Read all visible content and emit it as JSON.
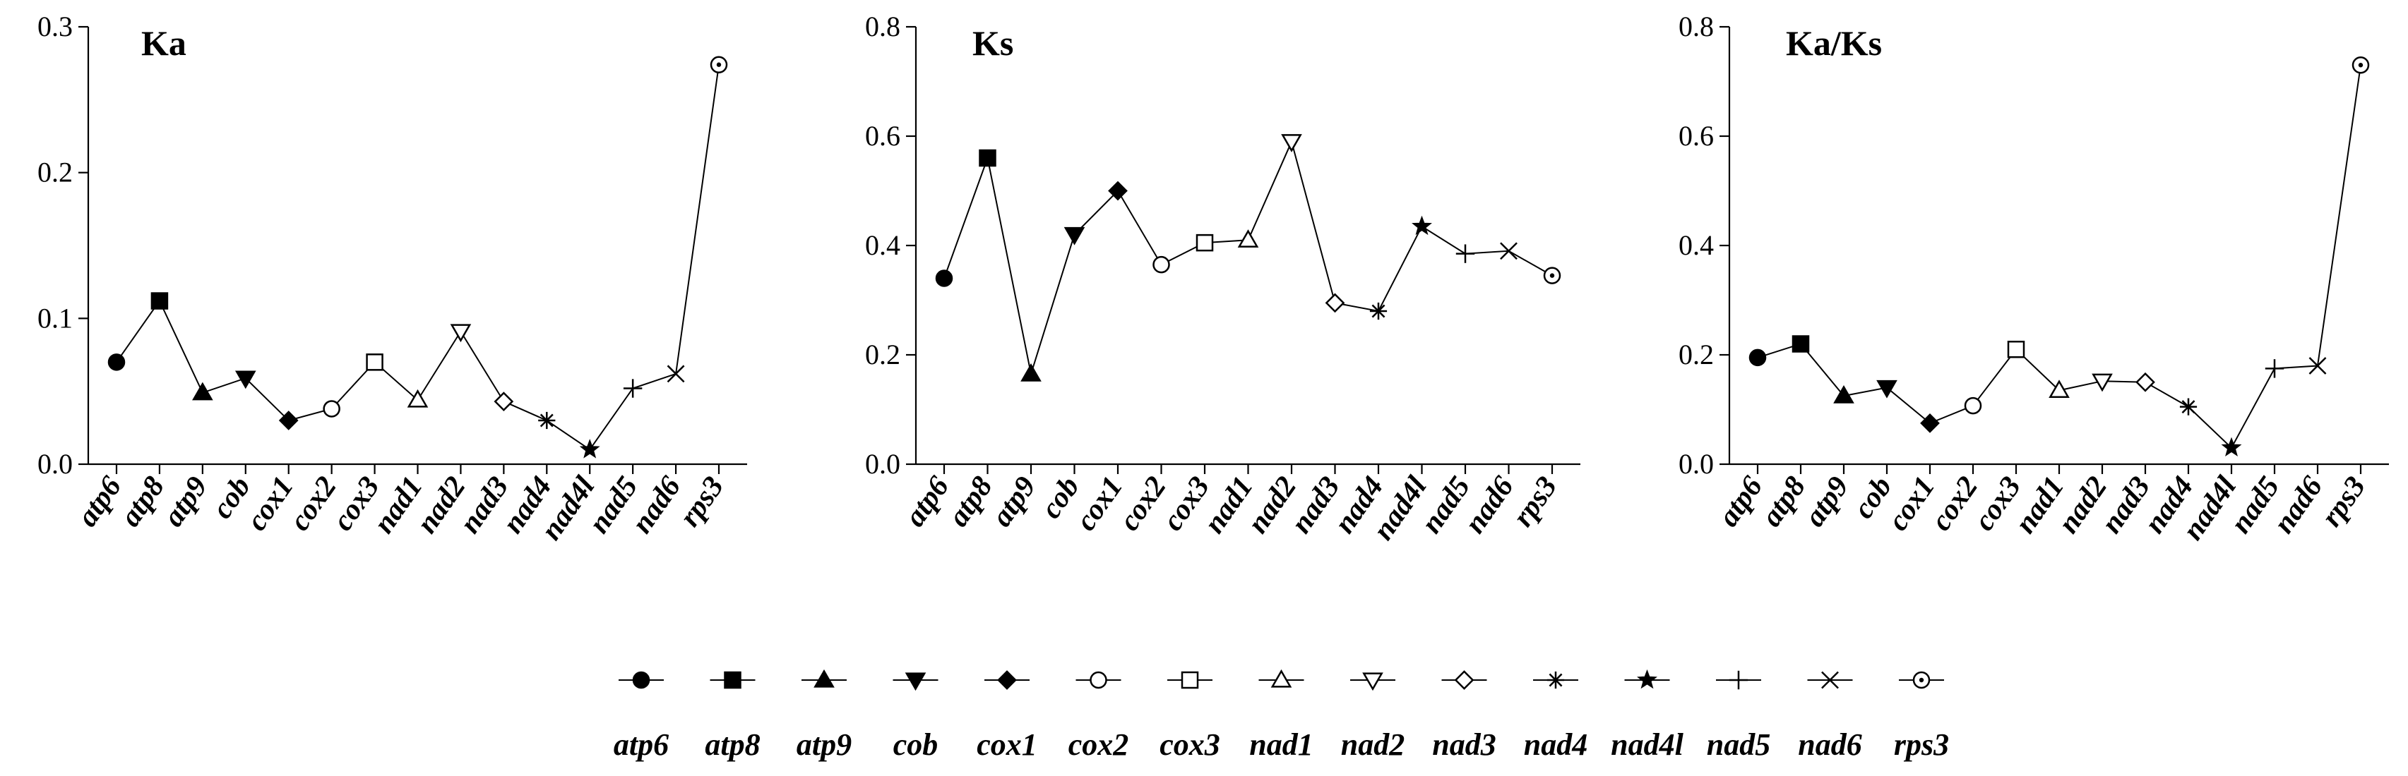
{
  "figure_title": "",
  "colors": {
    "ink": "#000000",
    "background": "#ffffff"
  },
  "chart_data": [
    {
      "type": "line",
      "title": "Ka",
      "xlabel": "",
      "ylabel": "",
      "ylim": [
        0,
        0.3
      ],
      "yticks": [
        "0.0",
        "0.1",
        "0.2",
        "0.3"
      ],
      "grid": false,
      "categories": [
        "atp6",
        "atp8",
        "atp9",
        "cob",
        "cox1",
        "cox2",
        "cox3",
        "nad1",
        "nad2",
        "nad3",
        "nad4",
        "nad4l",
        "nad5",
        "nad6",
        "rps3"
      ],
      "values": [
        0.07,
        0.112,
        0.049,
        0.059,
        0.03,
        0.038,
        0.07,
        0.044,
        0.091,
        0.043,
        0.03,
        0.01,
        0.052,
        0.062,
        0.274
      ]
    },
    {
      "type": "line",
      "title": "Ks",
      "xlabel": "",
      "ylabel": "",
      "ylim": [
        0,
        0.8
      ],
      "yticks": [
        "0.0",
        "0.2",
        "0.4",
        "0.6",
        "0.8"
      ],
      "grid": false,
      "categories": [
        "atp6",
        "atp8",
        "atp9",
        "cob",
        "cox1",
        "cox2",
        "cox3",
        "nad1",
        "nad2",
        "nad3",
        "nad4",
        "nad4l",
        "nad5",
        "nad6",
        "rps3"
      ],
      "values": [
        0.34,
        0.56,
        0.165,
        0.42,
        0.5,
        0.365,
        0.405,
        0.41,
        0.59,
        0.295,
        0.28,
        0.435,
        0.385,
        0.39,
        0.345
      ]
    },
    {
      "type": "line",
      "title": "Ka/Ks",
      "xlabel": "",
      "ylabel": "",
      "ylim": [
        0,
        0.8
      ],
      "yticks": [
        "0.0",
        "0.2",
        "0.4",
        "0.6",
        "0.8"
      ],
      "grid": false,
      "categories": [
        "atp6",
        "atp8",
        "atp9",
        "cob",
        "cox1",
        "cox2",
        "cox3",
        "nad1",
        "nad2",
        "nad3",
        "nad4",
        "nad4l",
        "nad5",
        "nad6",
        "rps3"
      ],
      "values": [
        0.195,
        0.22,
        0.125,
        0.14,
        0.075,
        0.107,
        0.21,
        0.135,
        0.152,
        0.15,
        0.105,
        0.03,
        0.175,
        0.18,
        0.73
      ]
    }
  ],
  "legend": {
    "position": "bottom",
    "items": [
      {
        "label": "atp6",
        "marker": "filled-circle-icon"
      },
      {
        "label": "atp8",
        "marker": "filled-square-icon"
      },
      {
        "label": "atp9",
        "marker": "filled-triangle-up-icon"
      },
      {
        "label": "cob",
        "marker": "filled-triangle-down-icon"
      },
      {
        "label": "cox1",
        "marker": "filled-diamond-icon"
      },
      {
        "label": "cox2",
        "marker": "open-circle-icon"
      },
      {
        "label": "cox3",
        "marker": "open-square-icon"
      },
      {
        "label": "nad1",
        "marker": "open-triangle-up-icon"
      },
      {
        "label": "nad2",
        "marker": "open-triangle-down-icon"
      },
      {
        "label": "nad3",
        "marker": "open-diamond-icon"
      },
      {
        "label": "nad4",
        "marker": "asterisk-icon"
      },
      {
        "label": "nad4l",
        "marker": "filled-star-icon"
      },
      {
        "label": "nad5",
        "marker": "plus-icon"
      },
      {
        "label": "nad6",
        "marker": "cross-icon"
      },
      {
        "label": "rps3",
        "marker": "dotted-circle-icon"
      }
    ]
  }
}
